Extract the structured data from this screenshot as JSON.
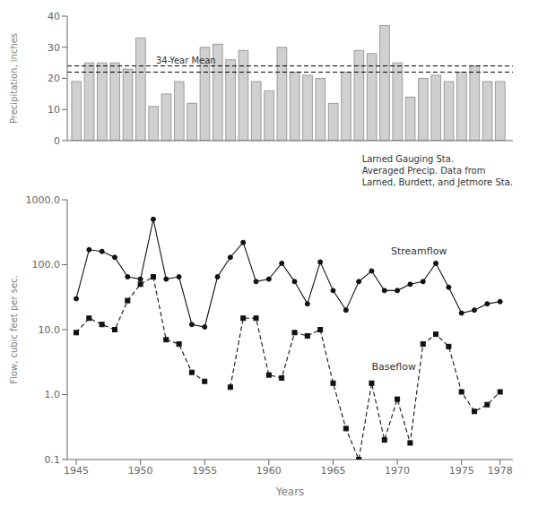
{
  "chart_data": [
    {
      "type": "bar",
      "x": [
        1945,
        1946,
        1947,
        1948,
        1949,
        1950,
        1951,
        1952,
        1953,
        1954,
        1955,
        1956,
        1957,
        1958,
        1959,
        1960,
        1961,
        1962,
        1963,
        1964,
        1965,
        1966,
        1967,
        1968,
        1969,
        1970,
        1971,
        1972,
        1973,
        1974,
        1975,
        1976,
        1977,
        1978
      ],
      "values": [
        19,
        25,
        25,
        25,
        23,
        33,
        11,
        15,
        19,
        12,
        30,
        31,
        26,
        29,
        19,
        16,
        30,
        22,
        21,
        20,
        12,
        22,
        29,
        28,
        37,
        25,
        14,
        20,
        21,
        19,
        22,
        24,
        19,
        19
      ],
      "color": "#d0d0d0",
      "xlim": [
        1944.3,
        1979.0
      ],
      "ylim": [
        0,
        40
      ],
      "yticks": [
        0,
        10,
        20,
        30,
        40
      ],
      "ylabel": "Precipitation, inches",
      "mean_lines": [
        22,
        24
      ],
      "tick_labels": "y",
      "grid": false,
      "annotations": [
        {
          "text": "34-Year Mean",
          "x": 1951.0,
          "y": 25.5
        },
        {
          "text": "Larned Gauging Sta.\nAveraged Precip. Data from\nLarned, Burdett, and Jetmore Sta."
        }
      ]
    },
    {
      "type": "line",
      "x": [
        1945,
        1946,
        1947,
        1948,
        1949,
        1950,
        1951,
        1952,
        1953,
        1954,
        1955,
        1956,
        1957,
        1958,
        1959,
        1960,
        1961,
        1962,
        1963,
        1964,
        1965,
        1966,
        1967,
        1968,
        1969,
        1970,
        1971,
        1972,
        1973,
        1974,
        1975,
        1976,
        1977,
        1978
      ],
      "series": [
        {
          "name": "Streamflow",
          "color": "#111111",
          "marker": "circle",
          "line_style": "solid",
          "values": [
            30,
            170,
            160,
            130,
            65,
            60,
            500,
            60,
            65,
            12,
            11,
            65,
            130,
            220,
            55,
            60,
            105,
            55,
            25,
            110,
            40,
            20,
            55,
            80,
            40,
            40,
            50,
            55,
            105,
            45,
            18,
            20,
            25,
            27
          ]
        },
        {
          "name": "Baseflow",
          "color": "#111111",
          "marker": "square",
          "line_style": "dashed",
          "values": [
            9,
            15,
            12,
            10,
            28,
            50,
            65,
            7,
            6,
            2.2,
            1.6,
            null,
            1.3,
            15,
            15,
            2.0,
            1.8,
            9,
            8,
            10,
            1.5,
            0.3,
            0.1,
            1.5,
            0.2,
            0.85,
            0.18,
            6,
            8.5,
            5.5,
            1.1,
            0.55,
            0.7,
            1.1
          ]
        }
      ],
      "xlim": [
        1944.3,
        1979.0
      ],
      "xticks": [
        1945,
        1950,
        1955,
        1960,
        1965,
        1970,
        1975,
        1978
      ],
      "xlabel": "Years",
      "ylim": [
        0.1,
        1000.0
      ],
      "yticks": [
        0.1,
        {
          "value": 1,
          "label": "1.0"
        },
        {
          "value": 10,
          "label": "10.0"
        },
        {
          "value": 100,
          "label": "100.0"
        },
        {
          "value": 1000,
          "label": "1000.0"
        }
      ],
      "ylabel": "Flow, cubic feet per sec.",
      "log": "y",
      "grid": false,
      "annotations": [
        {
          "text": "Streamflow",
          "x": 1969.5,
          "y": 130
        },
        {
          "text": "Baseflow",
          "x": 1968.0,
          "y": 2.2
        }
      ]
    }
  ]
}
